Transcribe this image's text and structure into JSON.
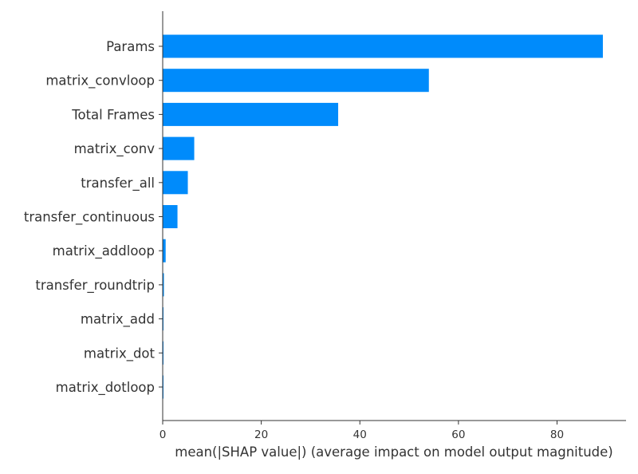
{
  "chart_data": {
    "type": "bar",
    "orientation": "horizontal",
    "categories": [
      "Params",
      "matrix_convloop",
      "Total Frames",
      "matrix_conv",
      "transfer_all",
      "transfer_continuous",
      "matrix_addloop",
      "transfer_roundtrip",
      "matrix_add",
      "matrix_dot",
      "matrix_dotloop"
    ],
    "values": [
      89.3,
      54.0,
      35.6,
      6.4,
      5.1,
      3.0,
      0.6,
      0.25,
      0.08,
      0.05,
      0.04
    ],
    "title": "",
    "xlabel": "mean(|SHAP value|) (average impact on model output magnitude)",
    "ylabel": "",
    "xlim": [
      0,
      94
    ],
    "xticks": [
      0,
      20,
      40,
      60,
      80
    ],
    "grid": false,
    "legend": "none",
    "bar_color": "#008bfb",
    "axis_color": "#333333",
    "text_color": "#333333"
  }
}
